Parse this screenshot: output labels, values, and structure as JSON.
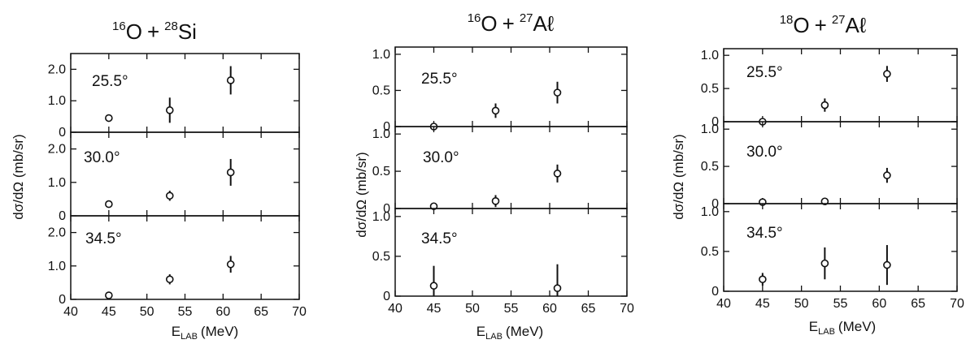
{
  "chart_data": [
    {
      "type": "scatter",
      "title": {
        "a_mass": "16",
        "a_sym": "O",
        "plus": "+",
        "b_mass": "28",
        "b_sym": "Si"
      },
      "ylabel": "dσ/dΩ (mb/sr)",
      "xlabel": {
        "main": "E",
        "sub": "LAB",
        "unit": "(MeV)"
      },
      "xlim": [
        40,
        70
      ],
      "xticks": [
        40,
        45,
        50,
        55,
        60,
        65,
        70
      ],
      "xtick_labels": [
        "40",
        "45",
        "50",
        "55",
        "60",
        "65",
        "70"
      ],
      "panels": [
        {
          "angle": "25.5°",
          "ylim": [
            0,
            2.5
          ],
          "yticks": [
            0,
            1.0,
            2.0
          ],
          "ytick_labels": [
            "0",
            "1.0",
            "2.0"
          ],
          "points": [
            {
              "x": 45,
              "y": 0.45,
              "err": 0
            },
            {
              "x": 53,
              "y": 0.7,
              "err": 0.4
            },
            {
              "x": 61,
              "y": 1.65,
              "err": 0.45
            }
          ]
        },
        {
          "angle": "30.0°",
          "ylim": [
            0,
            2.5
          ],
          "yticks": [
            0,
            1.0,
            2.0
          ],
          "ytick_labels": [
            "0",
            "1.0",
            "2.0"
          ],
          "points": [
            {
              "x": 45,
              "y": 0.35,
              "err": 0
            },
            {
              "x": 53,
              "y": 0.6,
              "err": 0.15
            },
            {
              "x": 61,
              "y": 1.3,
              "err": 0.4
            }
          ]
        },
        {
          "angle": "34.5°",
          "ylim": [
            0,
            2.5
          ],
          "yticks": [
            0,
            1.0,
            2.0
          ],
          "ytick_labels": [
            "0",
            "1.0",
            "2.0"
          ],
          "points": [
            {
              "x": 45,
              "y": 0.12,
              "err": 0
            },
            {
              "x": 53,
              "y": 0.6,
              "err": 0.15
            },
            {
              "x": 61,
              "y": 1.05,
              "err": 0.25
            }
          ]
        }
      ]
    },
    {
      "type": "scatter",
      "title": {
        "a_mass": "16",
        "a_sym": "O",
        "plus": "+",
        "b_mass": "27",
        "b_sym": "Aℓ"
      },
      "ylabel": "dσ/dΩ (mb/sr)",
      "xlabel": {
        "main": "E",
        "sub": "LAB",
        "unit": "(MeV)"
      },
      "xlim": [
        40,
        70
      ],
      "xticks": [
        40,
        45,
        50,
        55,
        60,
        65,
        70
      ],
      "xtick_labels": [
        "40",
        "45",
        "50",
        "55",
        "60",
        "65",
        "70"
      ],
      "panels": [
        {
          "angle": "25.5°",
          "ylim": [
            0,
            1.1
          ],
          "yticks": [
            0,
            0.5,
            1.0
          ],
          "ytick_labels": [
            "0",
            "0.5",
            "1.0"
          ],
          "points": [
            {
              "x": 45,
              "y": 0.0,
              "err": 0
            },
            {
              "x": 53,
              "y": 0.22,
              "err": 0.1
            },
            {
              "x": 61,
              "y": 0.47,
              "err": 0.15
            }
          ]
        },
        {
          "angle": "30.0°",
          "ylim": [
            0,
            1.1
          ],
          "yticks": [
            0,
            0.5,
            1.0
          ],
          "ytick_labels": [
            "0",
            "0.5",
            "1.0"
          ],
          "points": [
            {
              "x": 45,
              "y": 0.03,
              "err": 0
            },
            {
              "x": 53,
              "y": 0.1,
              "err": 0.08
            },
            {
              "x": 61,
              "y": 0.47,
              "err": 0.12
            }
          ]
        },
        {
          "angle": "34.5°",
          "ylim": [
            0,
            1.1
          ],
          "yticks": [
            0,
            0.5,
            1.0
          ],
          "ytick_labels": [
            "0",
            "0.5",
            "1.0"
          ],
          "points": [
            {
              "x": 45,
              "y": 0.13,
              "err": 0.25
            },
            {
              "x": 61,
              "y": 0.1,
              "err": 0.3
            }
          ]
        }
      ]
    },
    {
      "type": "scatter",
      "title": {
        "a_mass": "18",
        "a_sym": "O",
        "plus": "+",
        "b_mass": "27",
        "b_sym": "Aℓ"
      },
      "ylabel": "dσ/dΩ (mb/sr)",
      "xlabel": {
        "main": "E",
        "sub": "LAB",
        "unit": "(MeV)"
      },
      "xlim": [
        40,
        70
      ],
      "xticks": [
        40,
        45,
        50,
        55,
        60,
        65,
        70
      ],
      "xtick_labels": [
        "40",
        "45",
        "50",
        "55",
        "60",
        "65",
        "70"
      ],
      "panels": [
        {
          "angle": "25.5°",
          "ylim": [
            0,
            1.1
          ],
          "yticks": [
            0,
            0.5,
            1.0
          ],
          "ytick_labels": [
            "0",
            "0.5",
            "1.0"
          ],
          "points": [
            {
              "x": 45,
              "y": 0.0,
              "err": 0
            },
            {
              "x": 53,
              "y": 0.25,
              "err": 0.1
            },
            {
              "x": 61,
              "y": 0.72,
              "err": 0.12
            }
          ]
        },
        {
          "angle": "30.0°",
          "ylim": [
            0,
            1.1
          ],
          "yticks": [
            0,
            0.5,
            1.0
          ],
          "ytick_labels": [
            "0",
            "0.5",
            "1.0"
          ],
          "points": [
            {
              "x": 45,
              "y": 0.02,
              "err": 0
            },
            {
              "x": 53,
              "y": 0.03,
              "err": 0
            },
            {
              "x": 61,
              "y": 0.38,
              "err": 0.1
            }
          ]
        },
        {
          "angle": "34.5°",
          "ylim": [
            0,
            1.1
          ],
          "yticks": [
            0,
            0.5,
            1.0
          ],
          "ytick_labels": [
            "0",
            "0.5",
            "1.0"
          ],
          "points": [
            {
              "x": 45,
              "y": 0.15,
              "err": 0.08
            },
            {
              "x": 53,
              "y": 0.35,
              "err": 0.2
            },
            {
              "x": 61,
              "y": 0.33,
              "err": 0.25
            }
          ]
        }
      ]
    }
  ]
}
